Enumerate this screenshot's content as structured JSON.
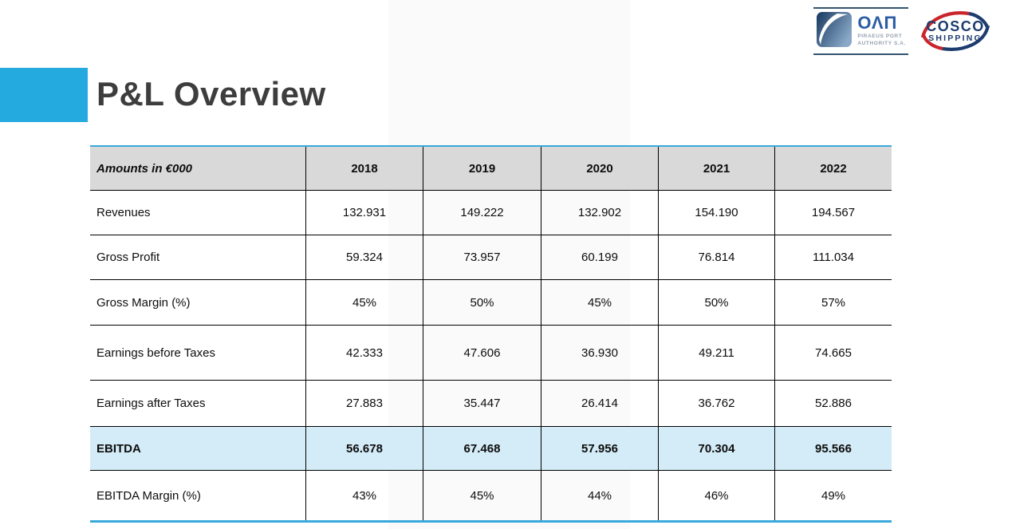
{
  "slide": {
    "title": "P&L Overview",
    "accent_color": "#25aadf",
    "table_rule_color": "#3aa9db"
  },
  "logos": {
    "olp": {
      "name": "ΟΛΠ",
      "subtitle_line1": "PIRAEUS PORT",
      "subtitle_line2": "AUTHORITY S.A."
    },
    "cosco": {
      "line1": "COSCO",
      "line2": "SHIPPING",
      "red": "#c9252c",
      "navy": "#1d3c6e"
    }
  },
  "table": {
    "header": [
      "Amounts in €000",
      "2018",
      "2019",
      "2020",
      "2021",
      "2022"
    ],
    "header_bg": "#d9d9d9",
    "highlight_bg": "#d4ecf7",
    "rows": [
      {
        "label": "Revenues",
        "values": [
          "132.931",
          "149.222",
          "132.902",
          "154.190",
          "194.567"
        ],
        "bold": false,
        "highlight": false
      },
      {
        "label": "Gross Profit",
        "values": [
          "59.324",
          "73.957",
          "60.199",
          "76.814",
          "111.034"
        ],
        "bold": false,
        "highlight": false
      },
      {
        "label": "Gross Margin (%)",
        "values": [
          "45%",
          "50%",
          "45%",
          "50%",
          "57%"
        ],
        "bold": false,
        "highlight": false
      },
      {
        "label": "Earnings before Taxes",
        "values": [
          "42.333",
          "47.606",
          "36.930",
          "49.211",
          "74.665"
        ],
        "bold": false,
        "highlight": false
      },
      {
        "label": "Earnings after Taxes",
        "values": [
          "27.883",
          "35.447",
          "26.414",
          "36.762",
          "52.886"
        ],
        "bold": false,
        "highlight": false
      },
      {
        "label": "EBITDA",
        "values": [
          "56.678",
          "67.468",
          "57.956",
          "70.304",
          "95.566"
        ],
        "bold": true,
        "highlight": true
      },
      {
        "label": "EBITDA Margin (%)",
        "values": [
          "43%",
          "45%",
          "44%",
          "46%",
          "49%"
        ],
        "bold": false,
        "highlight": false
      }
    ]
  },
  "chart_data": {
    "type": "table",
    "title": "P&L Overview",
    "unit": "Amounts in €000",
    "categories": [
      "2018",
      "2019",
      "2020",
      "2021",
      "2022"
    ],
    "series": [
      {
        "name": "Revenues",
        "values": [
          132931,
          149222,
          132902,
          154190,
          194567
        ]
      },
      {
        "name": "Gross Profit",
        "values": [
          59324,
          73957,
          60199,
          76814,
          111034
        ]
      },
      {
        "name": "Gross Margin (%)",
        "values": [
          45,
          50,
          45,
          50,
          57
        ]
      },
      {
        "name": "Earnings before Taxes",
        "values": [
          42333,
          47606,
          36930,
          49211,
          74665
        ]
      },
      {
        "name": "Earnings after Taxes",
        "values": [
          27883,
          35447,
          26414,
          36762,
          52886
        ]
      },
      {
        "name": "EBITDA",
        "values": [
          56678,
          67468,
          57956,
          70304,
          95566
        ]
      },
      {
        "name": "EBITDA Margin (%)",
        "values": [
          43,
          45,
          44,
          46,
          49
        ]
      }
    ]
  }
}
